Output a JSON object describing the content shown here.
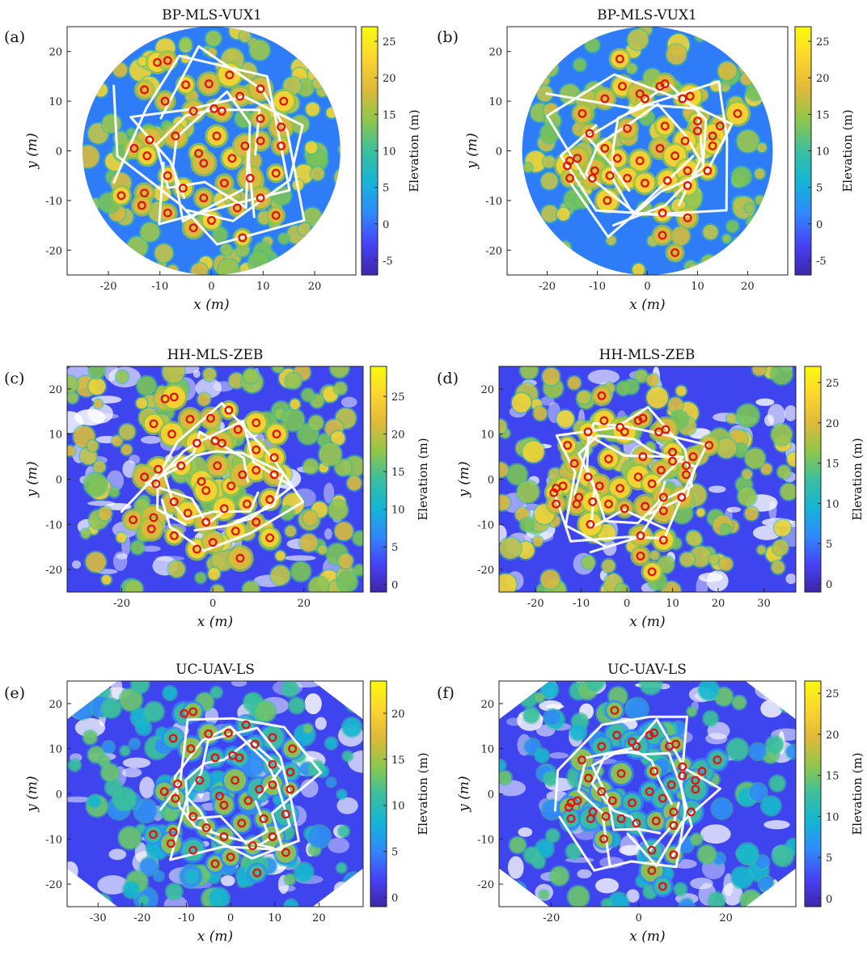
{
  "colorbar_label": "Elevation (m)",
  "xlabel": "x (m)",
  "ylabel": "y (m)",
  "colorscale": [
    "#3e26a8",
    "#4743f7",
    "#2f8afb",
    "#14b5d6",
    "#3bbf9d",
    "#8fc64a",
    "#e0b93a",
    "#fcd52f",
    "#f9fb0e"
  ],
  "track_color": "#ffffff",
  "stem_color": "#e01414",
  "chart_data": [
    {
      "panel": "(a)",
      "title": "BP-MLS-VUX1",
      "type": "scatter",
      "xlim": [
        -28,
        28
      ],
      "ylim": [
        -25,
        25
      ],
      "shape": "circle",
      "xticks": [
        -20,
        -10,
        0,
        10,
        20
      ],
      "yticks": [
        -20,
        -10,
        0,
        10,
        20
      ],
      "cbar": {
        "min": -7,
        "max": 27,
        "ticks": [
          -5,
          0,
          5,
          10,
          15,
          20,
          25
        ]
      },
      "stems": [
        [
          -10.5,
          17.8
        ],
        [
          -8.5,
          18.2
        ],
        [
          -13,
          12.3
        ],
        [
          -5,
          13.3
        ],
        [
          -0.5,
          13.5
        ],
        [
          3.5,
          15.3
        ],
        [
          9.5,
          12.5
        ],
        [
          -9,
          10
        ],
        [
          -3.5,
          8
        ],
        [
          0.5,
          8.5
        ],
        [
          2,
          8
        ],
        [
          5.5,
          11
        ],
        [
          14,
          10
        ],
        [
          9.5,
          6.5
        ],
        [
          13.5,
          4.8
        ],
        [
          -12,
          2.2
        ],
        [
          -7,
          3
        ],
        [
          -15,
          0.5
        ],
        [
          -12.5,
          -1
        ],
        [
          -2.5,
          -0.5
        ],
        [
          1,
          3
        ],
        [
          4,
          -1.5
        ],
        [
          6.5,
          1
        ],
        [
          9.5,
          2
        ],
        [
          13.5,
          1
        ],
        [
          -8.5,
          -5
        ],
        [
          -5.5,
          -7.5
        ],
        [
          -1.5,
          -2.5
        ],
        [
          2.5,
          -6.5
        ],
        [
          7.5,
          -5.5
        ],
        [
          12.5,
          -4.5
        ],
        [
          -17.5,
          -9
        ],
        [
          -13,
          -8.5
        ],
        [
          -13.5,
          -11
        ],
        [
          -8.5,
          -12.5
        ],
        [
          -1.5,
          -9.5
        ],
        [
          -3.5,
          -15.5
        ],
        [
          0,
          -14
        ],
        [
          5,
          -11.5
        ],
        [
          9.5,
          -9.5
        ],
        [
          12.5,
          -13
        ],
        [
          6,
          -17.5
        ]
      ]
    },
    {
      "panel": "(b)",
      "title": "BP-MLS-VUX1",
      "type": "scatter",
      "xlim": [
        -28,
        28
      ],
      "ylim": [
        -25,
        25
      ],
      "shape": "circle",
      "xticks": [
        -20,
        -10,
        0,
        10,
        20
      ],
      "yticks": [
        -20,
        -10,
        0,
        10,
        20
      ],
      "cbar": {
        "min": -7,
        "max": 27,
        "ticks": [
          -5,
          0,
          5,
          10,
          15,
          20,
          25
        ]
      },
      "stems": [
        [
          -5.5,
          18.5
        ],
        [
          -5,
          13
        ],
        [
          2.5,
          13
        ],
        [
          3.5,
          13.5
        ],
        [
          -1.5,
          11.5
        ],
        [
          -0.5,
          10.5
        ],
        [
          -8.5,
          10.5
        ],
        [
          7,
          10.5
        ],
        [
          8.5,
          11
        ],
        [
          -13,
          7.5
        ],
        [
          -4,
          4.5
        ],
        [
          3.5,
          5
        ],
        [
          10,
          6
        ],
        [
          10,
          4
        ],
        [
          14.5,
          5
        ],
        [
          18,
          7.5
        ],
        [
          -11.5,
          3.5
        ],
        [
          7.5,
          2
        ],
        [
          13,
          3
        ],
        [
          13,
          1
        ],
        [
          -15.5,
          -2
        ],
        [
          -14,
          -1.5
        ],
        [
          -8.5,
          0.5
        ],
        [
          -6,
          -1.5
        ],
        [
          -1.5,
          -2
        ],
        [
          2.5,
          0.5
        ],
        [
          5.5,
          -1
        ],
        [
          -16,
          -3
        ],
        [
          -10.5,
          -4
        ],
        [
          -15.5,
          -5.5
        ],
        [
          -11,
          -5.5
        ],
        [
          -7.5,
          -5
        ],
        [
          -4,
          -5.5
        ],
        [
          -0.5,
          -6.5
        ],
        [
          4,
          -6
        ],
        [
          8,
          -4
        ],
        [
          12,
          -4
        ],
        [
          8,
          -7
        ],
        [
          -8,
          -10
        ],
        [
          3,
          -12.5
        ],
        [
          8,
          -13.5
        ],
        [
          3,
          -17
        ],
        [
          5.5,
          -20.5
        ]
      ]
    },
    {
      "panel": "(c)",
      "title": "HH-MLS-ZEB",
      "type": "scatter",
      "xlim": [
        -32,
        33
      ],
      "ylim": [
        -25,
        25
      ],
      "shape": "rect",
      "xticks": [
        -20,
        0,
        20
      ],
      "yticks": [
        -20,
        -10,
        0,
        10,
        20
      ],
      "cbar": {
        "min": -1,
        "max": 29,
        "ticks": [
          0,
          5,
          10,
          15,
          20,
          25
        ]
      },
      "stems": [
        [
          -10.5,
          17.8
        ],
        [
          -8.5,
          18.2
        ],
        [
          -13,
          12.3
        ],
        [
          -5,
          13.3
        ],
        [
          -0.5,
          13.5
        ],
        [
          3.5,
          15.3
        ],
        [
          9.5,
          12.5
        ],
        [
          -9,
          10
        ],
        [
          -3.5,
          8
        ],
        [
          0.5,
          8.5
        ],
        [
          2,
          8
        ],
        [
          5.5,
          11
        ],
        [
          14,
          10
        ],
        [
          9.5,
          6.5
        ],
        [
          13.5,
          4.8
        ],
        [
          -12,
          2.2
        ],
        [
          -7,
          3
        ],
        [
          -15,
          0.5
        ],
        [
          -12.5,
          -1
        ],
        [
          -2.5,
          -0.5
        ],
        [
          1,
          3
        ],
        [
          4,
          -1.5
        ],
        [
          6.5,
          1
        ],
        [
          9.5,
          2
        ],
        [
          13.5,
          1
        ],
        [
          -8.5,
          -5
        ],
        [
          -5.5,
          -7.5
        ],
        [
          -1.5,
          -2.5
        ],
        [
          2.5,
          -6.5
        ],
        [
          7.5,
          -5.5
        ],
        [
          12.5,
          -4.5
        ],
        [
          -17.5,
          -9
        ],
        [
          -13,
          -8.5
        ],
        [
          -13.5,
          -11
        ],
        [
          -8.5,
          -12.5
        ],
        [
          -1.5,
          -9.5
        ],
        [
          -3.5,
          -15.5
        ],
        [
          0,
          -14
        ],
        [
          5,
          -11.5
        ],
        [
          9.5,
          -9.5
        ],
        [
          12.5,
          -13
        ],
        [
          6,
          -17.5
        ]
      ]
    },
    {
      "panel": "(d)",
      "title": "HH-MLS-ZEB",
      "type": "scatter",
      "xlim": [
        -28,
        37
      ],
      "ylim": [
        -25,
        25
      ],
      "shape": "rect",
      "xticks": [
        -20,
        -10,
        0,
        10,
        20,
        30
      ],
      "yticks": [
        -20,
        -10,
        0,
        10,
        20
      ],
      "cbar": {
        "min": -1,
        "max": 27,
        "ticks": [
          0,
          5,
          10,
          15,
          20,
          25
        ]
      },
      "stems": [
        [
          -5.5,
          18.5
        ],
        [
          -5,
          13
        ],
        [
          2.5,
          13
        ],
        [
          3.5,
          13.5
        ],
        [
          -1.5,
          11.5
        ],
        [
          -0.5,
          10.5
        ],
        [
          -8.5,
          10.5
        ],
        [
          7,
          10.5
        ],
        [
          8.5,
          11
        ],
        [
          -13,
          7.5
        ],
        [
          -4,
          4.5
        ],
        [
          3.5,
          5
        ],
        [
          10,
          6
        ],
        [
          10,
          4
        ],
        [
          14.5,
          5
        ],
        [
          18,
          7.5
        ],
        [
          -11.5,
          3.5
        ],
        [
          7.5,
          2
        ],
        [
          13,
          3
        ],
        [
          13,
          1
        ],
        [
          -15.5,
          -2
        ],
        [
          -14,
          -1.5
        ],
        [
          -8.5,
          0.5
        ],
        [
          -6,
          -1.5
        ],
        [
          -1.5,
          -2
        ],
        [
          2.5,
          0.5
        ],
        [
          5.5,
          -1
        ],
        [
          -16,
          -3
        ],
        [
          -10.5,
          -4
        ],
        [
          -15.5,
          -5.5
        ],
        [
          -11,
          -5.5
        ],
        [
          -7.5,
          -5
        ],
        [
          -4,
          -5.5
        ],
        [
          -0.5,
          -6.5
        ],
        [
          4,
          -6
        ],
        [
          8,
          -4
        ],
        [
          12,
          -4
        ],
        [
          8,
          -7
        ],
        [
          -8,
          -10
        ],
        [
          3,
          -12.5
        ],
        [
          8,
          -13.5
        ],
        [
          3,
          -17
        ],
        [
          5.5,
          -20.5
        ]
      ]
    },
    {
      "panel": "(e)",
      "title": "UC-UAV-LS",
      "type": "scatter",
      "xlim": [
        -37,
        30
      ],
      "ylim": [
        -25,
        25
      ],
      "shape": "octagon",
      "xticks": [
        -30,
        -20,
        -10,
        0,
        10,
        20
      ],
      "yticks": [
        -20,
        -10,
        0,
        10,
        20
      ],
      "cbar": {
        "min": -1,
        "max": 23.5,
        "ticks": [
          0,
          5,
          10,
          15,
          20
        ]
      },
      "stems": [
        [
          -10.5,
          17.8
        ],
        [
          -8.5,
          18.2
        ],
        [
          -13,
          12.3
        ],
        [
          -5,
          13.3
        ],
        [
          -0.5,
          13.5
        ],
        [
          3.5,
          15.3
        ],
        [
          9.5,
          12.5
        ],
        [
          -9,
          10
        ],
        [
          -3.5,
          8
        ],
        [
          0.5,
          8.5
        ],
        [
          2,
          8
        ],
        [
          5.5,
          11
        ],
        [
          14,
          10
        ],
        [
          9.5,
          6.5
        ],
        [
          13.5,
          4.8
        ],
        [
          -12,
          2.2
        ],
        [
          -7,
          3
        ],
        [
          -15,
          0.5
        ],
        [
          -12.5,
          -1
        ],
        [
          -2.5,
          -0.5
        ],
        [
          1,
          3
        ],
        [
          4,
          -1.5
        ],
        [
          6.5,
          1
        ],
        [
          9.5,
          2
        ],
        [
          13.5,
          1
        ],
        [
          -8.5,
          -5
        ],
        [
          -5.5,
          -7.5
        ],
        [
          -1.5,
          -2.5
        ],
        [
          2.5,
          -6.5
        ],
        [
          7.5,
          -5.5
        ],
        [
          12.5,
          -4.5
        ],
        [
          -17.5,
          -9
        ],
        [
          -13,
          -8.5
        ],
        [
          -13.5,
          -11
        ],
        [
          -8.5,
          -12.5
        ],
        [
          -1.5,
          -9.5
        ],
        [
          -3.5,
          -15.5
        ],
        [
          0,
          -14
        ],
        [
          5,
          -11.5
        ],
        [
          9.5,
          -9.5
        ],
        [
          12.5,
          -13
        ],
        [
          6,
          -17.5
        ]
      ]
    },
    {
      "panel": "(f)",
      "title": "UC-UAV-LS",
      "type": "scatter",
      "xlim": [
        -32,
        36
      ],
      "ylim": [
        -25,
        25
      ],
      "shape": "octagon",
      "xticks": [
        -20,
        0,
        20
      ],
      "yticks": [
        -20,
        -10,
        0,
        10,
        20
      ],
      "cbar": {
        "min": -1,
        "max": 26.5,
        "ticks": [
          0,
          5,
          10,
          15,
          20,
          25
        ]
      },
      "stems": [
        [
          -5.5,
          18.5
        ],
        [
          -5,
          13
        ],
        [
          2.5,
          13
        ],
        [
          3.5,
          13.5
        ],
        [
          -1.5,
          11.5
        ],
        [
          -0.5,
          10.5
        ],
        [
          -8.5,
          10.5
        ],
        [
          7,
          10.5
        ],
        [
          8.5,
          11
        ],
        [
          -13,
          7.5
        ],
        [
          -4,
          4.5
        ],
        [
          3.5,
          5
        ],
        [
          10,
          6
        ],
        [
          10,
          4
        ],
        [
          14.5,
          5
        ],
        [
          18,
          7.5
        ],
        [
          -11.5,
          3.5
        ],
        [
          7.5,
          2
        ],
        [
          13,
          3
        ],
        [
          13,
          1
        ],
        [
          -15.5,
          -2
        ],
        [
          -14,
          -1.5
        ],
        [
          -8.5,
          0.5
        ],
        [
          -6,
          -1.5
        ],
        [
          -1.5,
          -2
        ],
        [
          2.5,
          0.5
        ],
        [
          5.5,
          -1
        ],
        [
          -16,
          -3
        ],
        [
          -10.5,
          -4
        ],
        [
          -15.5,
          -5.5
        ],
        [
          -11,
          -5.5
        ],
        [
          -7.5,
          -5
        ],
        [
          -4,
          -5.5
        ],
        [
          -0.5,
          -6.5
        ],
        [
          4,
          -6
        ],
        [
          8,
          -4
        ],
        [
          12,
          -4
        ],
        [
          8,
          -7
        ],
        [
          -8,
          -10
        ],
        [
          3,
          -12.5
        ],
        [
          8,
          -13.5
        ],
        [
          3,
          -17
        ],
        [
          5.5,
          -20.5
        ]
      ]
    }
  ]
}
